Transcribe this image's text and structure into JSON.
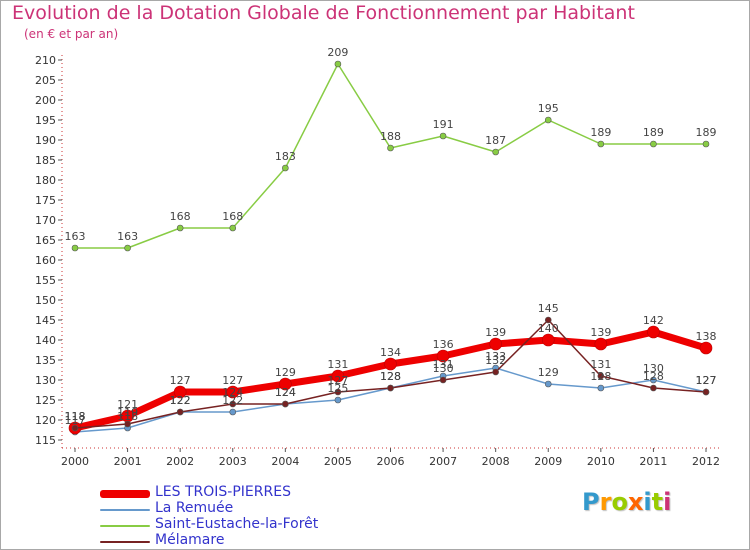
{
  "title": "Evolution de la Dotation Globale de Fonctionnement par Habitant",
  "subtitle": "(en € et par an)",
  "logo": {
    "letters": [
      "P",
      "r",
      "o",
      "x",
      "i",
      "t",
      "i"
    ],
    "colors": [
      "#3399cc",
      "#ff9900",
      "#99cc00",
      "#ff6600",
      "#3399cc",
      "#99cc00",
      "#cc3377"
    ]
  },
  "chart_data": {
    "type": "line",
    "title": "Evolution de la Dotation Globale de Fonctionnement par Habitant",
    "subtitle": "(en € et par an)",
    "xlabel": "",
    "ylabel": "",
    "grid": false,
    "legend_position": "bottom-left",
    "x": [
      "2000",
      "2001",
      "2002",
      "2003",
      "2004",
      "2005",
      "2006",
      "2007",
      "2008",
      "2009",
      "2010",
      "2011",
      "2012"
    ],
    "ylim": [
      115,
      210
    ],
    "yticks": [
      115,
      120,
      125,
      130,
      135,
      140,
      145,
      150,
      155,
      160,
      165,
      170,
      175,
      180,
      185,
      190,
      195,
      200,
      205,
      210
    ],
    "series": [
      {
        "name": "LES TROIS-PIERRES",
        "color": "#ee0000",
        "values": [
          118,
          121,
          127,
          127,
          129,
          131,
          134,
          136,
          139,
          140,
          139,
          142,
          138
        ]
      },
      {
        "name": "La Remuée",
        "color": "#6699cc",
        "values": [
          117,
          118,
          122,
          122,
          124,
          125,
          128,
          131,
          133,
          129,
          128,
          130,
          127
        ]
      },
      {
        "name": "Saint-Eustache-la-Forêt",
        "color": "#88cc44",
        "values": [
          163,
          163,
          168,
          168,
          183,
          209,
          188,
          191,
          187,
          195,
          189,
          189,
          189
        ]
      },
      {
        "name": "Mélamare",
        "color": "#772222",
        "values": [
          118,
          119,
          122,
          124,
          124,
          127,
          128,
          130,
          132,
          145,
          131,
          128,
          127
        ]
      }
    ]
  }
}
